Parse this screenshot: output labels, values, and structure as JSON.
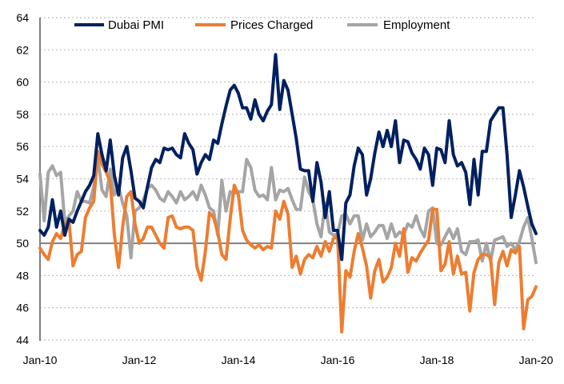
{
  "chart_data": {
    "type": "line",
    "title": "",
    "xlabel": "",
    "ylabel": "",
    "x_start": "Jan-10",
    "x_end": "Jan-20",
    "x_frequency": "monthly",
    "x_ticks": [
      "Jan-10",
      "Jan-12",
      "Jan-14",
      "Jan-16",
      "Jan-18",
      "Jan-20"
    ],
    "ylim": [
      44,
      64
    ],
    "y_ticks": [
      44,
      46,
      48,
      50,
      52,
      54,
      56,
      58,
      60,
      62,
      64
    ],
    "reference_line": 50,
    "grid": "horizontal dotted",
    "legend_position": "top",
    "series": [
      {
        "name": "Dubai PMI",
        "color": "#002060",
        "values": [
          50.8,
          50.5,
          51.0,
          52.7,
          51.0,
          52.0,
          50.5,
          51.5,
          51.3,
          52.0,
          52.6,
          53.2,
          53.6,
          54.2,
          56.8,
          55.5,
          54.5,
          56.4,
          54.2,
          53.0,
          55.3,
          56.0,
          54.5,
          52.8,
          52.6,
          52.2,
          53.5,
          54.7,
          55.2,
          55.0,
          55.9,
          55.8,
          55.9,
          55.5,
          55.3,
          56.8,
          56.2,
          55.8,
          54.3,
          55.0,
          55.5,
          55.2,
          56.4,
          56.2,
          57.4,
          58.5,
          59.5,
          59.8,
          59.3,
          58.4,
          58.4,
          57.7,
          58.9,
          58.0,
          57.6,
          58.2,
          58.6,
          61.7,
          58.3,
          60.1,
          59.5,
          58.0,
          56.5,
          54.6,
          54.5,
          54.5,
          52.6,
          55.0,
          53.8,
          51.6,
          53.2,
          50.8,
          50.8,
          49.0,
          52.5,
          53.0,
          54.8,
          55.9,
          55.5,
          53.0,
          54.0,
          55.6,
          56.9,
          56.0,
          57.0,
          56.0,
          57.6,
          55.0,
          56.4,
          56.3,
          55.6,
          55.2,
          54.6,
          55.9,
          55.5,
          53.6,
          55.9,
          55.8,
          55.0,
          57.6,
          55.5,
          54.8,
          55.0,
          54.4,
          52.4,
          55.2,
          53.0,
          55.7,
          55.7,
          57.6,
          58.0,
          58.4,
          58.4,
          55.5,
          51.6,
          53.0,
          54.5,
          53.5,
          52.3,
          51.2,
          50.6
        ]
      },
      {
        "name": "Prices Charged",
        "color": "#ED7D31",
        "values": [
          49.7,
          49.3,
          49.0,
          50.1,
          50.6,
          50.3,
          51.2,
          51.4,
          48.6,
          49.3,
          49.5,
          51.6,
          52.2,
          52.6,
          55.7,
          54.9,
          54.4,
          53.8,
          50.5,
          48.5,
          51.0,
          52.9,
          53.2,
          51.2,
          50.0,
          50.3,
          51.0,
          51.0,
          50.5,
          50.0,
          49.7,
          51.6,
          51.7,
          51.0,
          50.9,
          51.0,
          51.0,
          50.8,
          48.5,
          47.7,
          49.5,
          51.9,
          51.6,
          50.7,
          49.3,
          49.0,
          51.5,
          53.6,
          53.0,
          50.8,
          50.2,
          49.9,
          49.7,
          49.9,
          49.6,
          49.8,
          49.7,
          52.0,
          51.5,
          52.6,
          51.8,
          48.5,
          49.2,
          48.1,
          49.0,
          49.3,
          49.1,
          49.8,
          49.2,
          50.1,
          49.5,
          50.3,
          50.4,
          44.5,
          48.3,
          47.9,
          49.5,
          50.6,
          49.7,
          48.6,
          46.6,
          48.3,
          49.0,
          47.6,
          47.9,
          48.5,
          50.0,
          49.2,
          50.9,
          48.2,
          49.1,
          48.9,
          49.4,
          49.8,
          50.2,
          52.1,
          52.1,
          48.3,
          48.7,
          50.1,
          48.1,
          49.2,
          48.1,
          48.2,
          45.8,
          48.2,
          49.0,
          49.3,
          49.3,
          49.1,
          46.2,
          48.8,
          49.5,
          48.6,
          49.6,
          49.4,
          49.8,
          44.7,
          46.5,
          46.7,
          47.3
        ]
      },
      {
        "name": "Employment",
        "color": "#A5A5A5",
        "values": [
          54.3,
          51.4,
          54.4,
          54.8,
          54.2,
          54.4,
          51.3,
          51.7,
          52.0,
          53.2,
          52.6,
          52.6,
          52.5,
          53.5,
          55.3,
          53.3,
          52.9,
          54.6,
          53.0,
          53.5,
          52.5,
          51.7,
          49.1,
          52.0,
          52.2,
          52.7,
          53.4,
          53.6,
          53.3,
          52.8,
          52.6,
          53.2,
          52.9,
          52.5,
          53.2,
          52.7,
          52.9,
          53.2,
          52.7,
          53.6,
          53.0,
          52.2,
          52.0,
          50.5,
          53.9,
          52.0,
          53.2,
          53.1,
          53.2,
          53.2,
          55.2,
          54.7,
          53.3,
          52.9,
          53.0,
          52.7,
          54.7,
          52.7,
          53.3,
          53.2,
          53.4,
          52.7,
          52.1,
          52.1,
          54.1,
          53.2,
          52.7,
          51.2,
          50.4,
          52.5,
          50.7,
          50.5,
          50.6,
          51.7,
          51.8,
          51.2,
          51.7,
          51.7,
          50.2,
          51.2,
          50.4,
          50.7,
          51.1,
          51.1,
          50.3,
          51.2,
          50.4,
          50.7,
          50.5,
          51.2,
          51.0,
          51.7,
          50.9,
          50.4,
          52.0,
          52.2,
          50.0,
          49.9,
          50.4,
          50.9,
          50.3,
          50.9,
          49.5,
          49.3,
          50.1,
          50.1,
          50.2,
          48.9,
          50.0,
          48.9,
          50.2,
          50.3,
          50.4,
          49.8,
          50.0,
          49.6,
          50.1,
          51.0,
          51.6,
          50.3,
          48.8
        ]
      }
    ]
  }
}
